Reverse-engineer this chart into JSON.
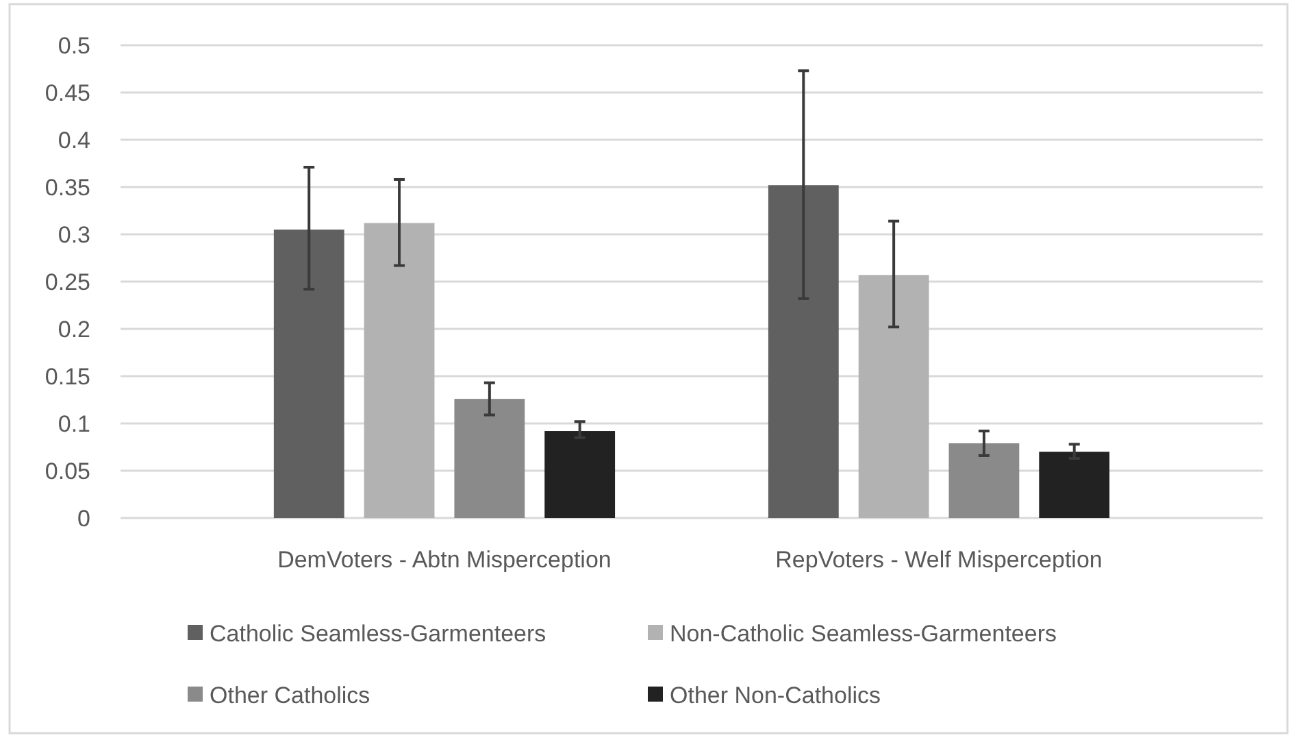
{
  "chart_data": {
    "type": "bar",
    "categories": [
      "DemVoters - Abtn Misperception",
      "RepVoters - Welf Misperception"
    ],
    "ylim": [
      0,
      0.5
    ],
    "yticks": [
      0,
      0.05,
      0.1,
      0.15,
      0.2,
      0.25,
      0.3,
      0.35,
      0.4,
      0.45,
      0.5
    ],
    "grid": "y",
    "legend": "bottom",
    "series": [
      {
        "name": "Catholic Seamless-Garmenteers",
        "color": "#606060",
        "values": [
          0.305,
          0.352
        ],
        "errors": [
          [
            0.242,
            0.371
          ],
          [
            0.232,
            0.473
          ]
        ]
      },
      {
        "name": "Non-Catholic Seamless-Garmenteers",
        "color": "#b2b2b2",
        "values": [
          0.312,
          0.257
        ],
        "errors": [
          [
            0.267,
            0.358
          ],
          [
            0.202,
            0.314
          ]
        ]
      },
      {
        "name": "Other Catholics",
        "color": "#8a8a8a",
        "values": [
          0.126,
          0.079
        ],
        "errors": [
          [
            0.109,
            0.143
          ],
          [
            0.066,
            0.092
          ]
        ]
      },
      {
        "name": "Other Non-Catholics",
        "color": "#222222",
        "values": [
          0.092,
          0.07
        ],
        "errors": [
          [
            0.085,
            0.102
          ],
          [
            0.063,
            0.078
          ]
        ]
      }
    ]
  }
}
